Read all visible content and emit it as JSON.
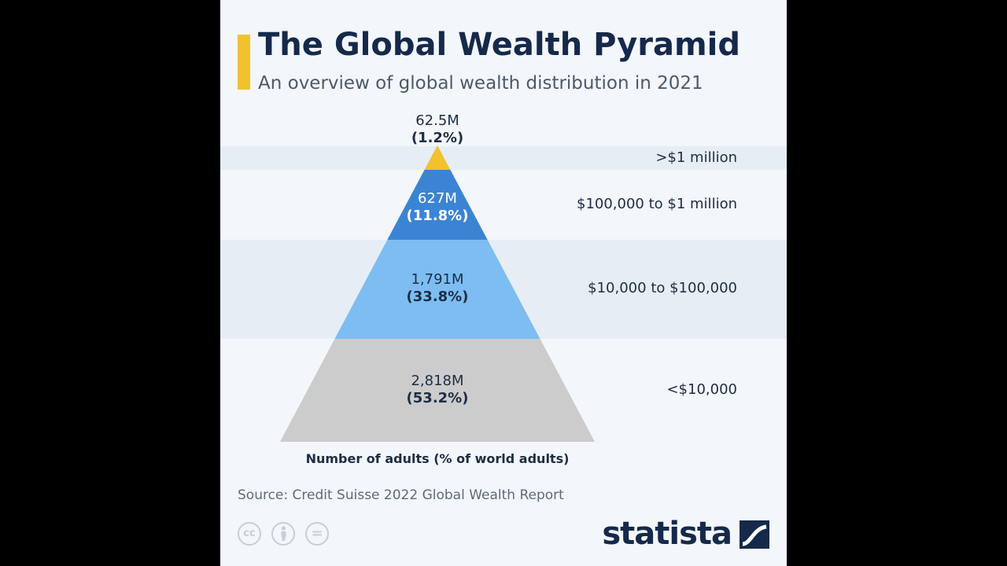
{
  "title": "The Global Wealth Pyramid",
  "subtitle": "An overview of global wealth distribution in 2021",
  "source": "Source: Credit Suisse 2022 Global Wealth Report",
  "brand": "statista",
  "license_icons": [
    "cc-icon",
    "attribution-icon",
    "no-derivatives-icon"
  ],
  "license_text": {
    "cc": "cc",
    "nd": "="
  },
  "colors": {
    "top": "#f2c12e",
    "upper": "#3b84d4",
    "middle": "#7dbdf2",
    "base": "#cccccc",
    "accent": "#f2c12e",
    "text": "#15294a"
  },
  "chart_data": {
    "type": "pyramid",
    "title": "The Global Wealth Pyramid",
    "subtitle": "An overview of global wealth distribution in 2021",
    "xlabel": "Number of adults (% of world adults)",
    "tiers": [
      {
        "wealth": ">$1 million",
        "adults": "62.5M",
        "share": "(1.2%)",
        "adults_millions": 62.5,
        "share_pct": 1.2
      },
      {
        "wealth": "$100,000 to $1 million",
        "adults": "627M",
        "share": "(11.8%)",
        "adults_millions": 627,
        "share_pct": 11.8
      },
      {
        "wealth": "$10,000 to $100,000",
        "adults": "1,791M",
        "share": "(33.8%)",
        "adults_millions": 1791,
        "share_pct": 33.8
      },
      {
        "wealth": "<$10,000",
        "adults": "2,818M",
        "share": "(53.2%)",
        "adults_millions": 2818,
        "share_pct": 53.2
      }
    ]
  }
}
